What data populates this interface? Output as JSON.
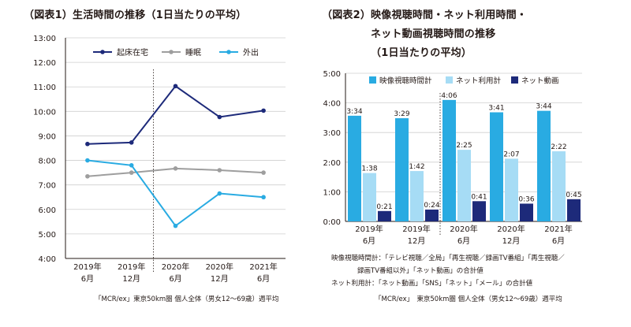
{
  "titles": {
    "left": "（図表1）生活時間の推移（1日当たりの平均）",
    "right_line1": "（図表2）映像視聴時間・ネット利用時間・",
    "right_line2": "ネット動画視聴時間の推移",
    "right_line3": "（1日当たりの平均）"
  },
  "notes": {
    "left_source": "「MCR/ex」東京50km圏 個人全体（男女12～69歳）週平均",
    "right_def1": "映像視聴時間計：「テレビ視聴／全局」「再生視聴／録画TV番組」「再生視聴／",
    "right_def2": "録画TV番組以外」「ネット動画」の合計値",
    "right_def3": "ネット利用計：「ネット動画」「SNS」「ネット」「メール」の合計値",
    "right_source": "「MCR/ex」　東京50km圏 個人全体（男女12～69歳）週平均"
  },
  "chart_data": [
    {
      "type": "line",
      "categories": [
        [
          "2019年",
          "6月"
        ],
        [
          "2019年",
          "12月"
        ],
        [
          "2020年",
          "6月"
        ],
        [
          "2020年",
          "12月"
        ],
        [
          "2021年",
          "6月"
        ]
      ],
      "y_tick_labels": [
        "4:00",
        "5:00",
        "6:00",
        "7:00",
        "8:00",
        "9:00",
        "10:00",
        "11:00",
        "12:00",
        "13:00"
      ],
      "ylim": [
        4,
        13
      ],
      "grid": true,
      "legend": "top",
      "series": [
        {
          "name": "起床在宅",
          "color": "#1d2a7a",
          "values": [
            8.67,
            8.73,
            11.03,
            9.77,
            10.03
          ]
        },
        {
          "name": "睡眠",
          "color": "#9e9e9e",
          "values": [
            7.35,
            7.5,
            7.67,
            7.6,
            7.5
          ]
        },
        {
          "name": "外出",
          "color": "#29abe2",
          "values": [
            8.0,
            7.8,
            5.33,
            6.65,
            6.5
          ]
        }
      ]
    },
    {
      "type": "bar",
      "categories": [
        [
          "2019年",
          "6月"
        ],
        [
          "2019年",
          "12月"
        ],
        [
          "2020年",
          "6月"
        ],
        [
          "2020年",
          "12月"
        ],
        [
          "2021年",
          "6月"
        ]
      ],
      "y_tick_labels": [
        "0:00",
        "1:00",
        "2:00",
        "3:00",
        "4:00",
        "5:00"
      ],
      "ylim": [
        0,
        5
      ],
      "grid": true,
      "legend": "top",
      "series": [
        {
          "name": "映像視聴時間計",
          "color": "#29abe2",
          "values": [
            3.567,
            3.483,
            4.1,
            3.683,
            3.733
          ],
          "labels": [
            "3:34",
            "3:29",
            "4:06",
            "3:41",
            "3:44"
          ]
        },
        {
          "name": "ネット利用計",
          "color": "#a6dcf5",
          "values": [
            1.633,
            1.7,
            2.417,
            2.117,
            2.367
          ],
          "labels": [
            "1:38",
            "1:42",
            "2:25",
            "2:07",
            "2:22"
          ]
        },
        {
          "name": "ネット動画",
          "color": "#1d2a7a",
          "values": [
            0.35,
            0.4,
            0.683,
            0.6,
            0.75
          ],
          "labels": [
            "0:21",
            "0:24",
            "0:41",
            "0:36",
            "0:45"
          ]
        }
      ]
    }
  ]
}
